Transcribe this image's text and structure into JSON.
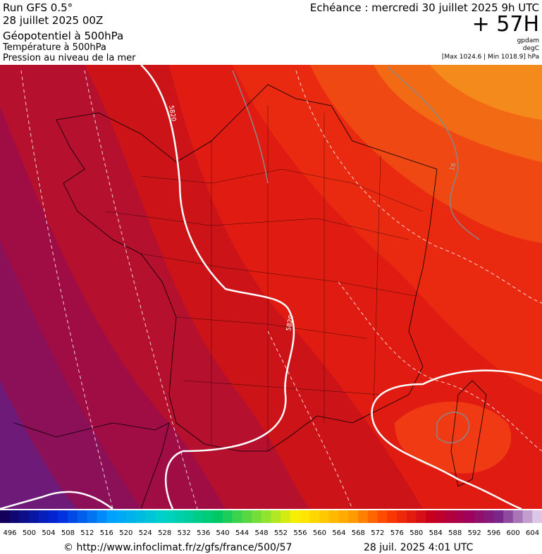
{
  "header": {
    "run": "Run GFS 0.5°",
    "date": "28 juillet 2025 00Z",
    "field_1": "Géopotentiel à 500hPa",
    "field_2": "Température à 500hPa",
    "field_3": "Pression au niveau de la mer",
    "valid": "Echéance : mercredi 30 juillet 2025 9h UTC",
    "lead": "+ 57H",
    "unit_1": "gpdam",
    "unit_2": "degC",
    "range": "[Max 1024.6 | Min 1018.9] hPa"
  },
  "map": {
    "contour_labels": [
      "5820",
      "5820",
      "16"
    ]
  },
  "colorbar": {
    "labels": [
      496,
      500,
      504,
      508,
      512,
      516,
      520,
      524,
      528,
      532,
      536,
      540,
      544,
      548,
      552,
      556,
      560,
      564,
      568,
      572,
      576,
      580,
      584,
      588,
      592,
      596,
      600,
      604
    ]
  },
  "footer": {
    "url": "© http://www.infoclimat.fr/z/gfs/france/500/57",
    "stamp": "28 juil. 2025  4:01 UTC"
  }
}
